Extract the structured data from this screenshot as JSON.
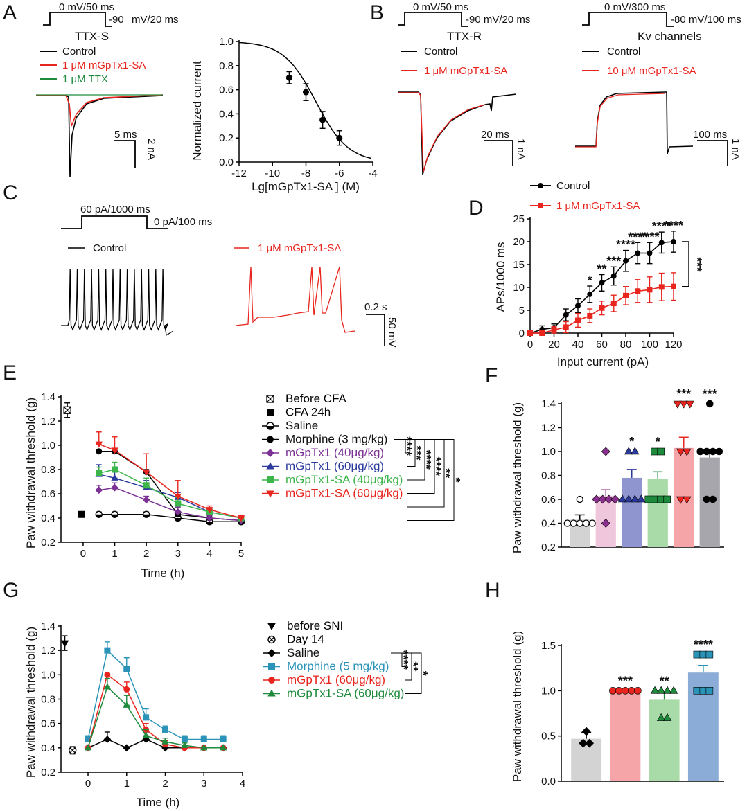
{
  "panels": {
    "A": {
      "label": "A",
      "protocol": {
        "step": "0 mV/50 ms",
        "tail": "-90",
        "tail_unit": "mV/20 ms"
      },
      "subtitle": "TTX-S",
      "legend": [
        "Control",
        "1 μM mGpTx1-SA",
        "1 μM TTX"
      ],
      "scale_x": "5 ms",
      "scale_y": "2 nA"
    },
    "A_dose": {
      "ylabel": "Normalized current",
      "xlabel": "Lg[mGpTx1-SA ] (M)"
    },
    "B": {
      "label": "B",
      "ttxr": {
        "protocol_step": "0 mV/50 ms",
        "protocol_tail": "-90 mV/20 ms",
        "subtitle": "TTX-R",
        "legend": [
          "Control",
          "1 μM mGpTx1-SA"
        ],
        "scale_x": "20 ms",
        "scale_y": "1 nA"
      },
      "kv": {
        "protocol_step": "0 mV/300 ms",
        "protocol_tail": "-80 mV/100 ms",
        "subtitle": "Kv channels",
        "legend": [
          "Control",
          "10 μM mGpTx1-SA"
        ],
        "scale_x": "100 ms",
        "scale_y": "1 nA"
      }
    },
    "C": {
      "label": "C",
      "protocol_step": "60 pA/1000 ms",
      "protocol_tail": "0 pA/100 ms",
      "legend": [
        "Control",
        "1 μM mGpTx1-SA"
      ],
      "scale_x": "0.2 s",
      "scale_y": "50 mV"
    },
    "D": {
      "label": "D",
      "legend": [
        "Control",
        "1 μM mGpTx1-SA"
      ],
      "ylabel": "APs/1000 ms",
      "xlabel": "Input current (pA)"
    },
    "E": {
      "label": "E",
      "ylabel": "Paw withdrawal threshold (g)",
      "xlabel": "Time (h)",
      "legend": [
        "Before CFA",
        "CFA 24h",
        "Saline",
        "Morphine (3 mg/kg)",
        "mGpTx1 (40μg/kg)",
        "mGpTx1 (60μg/kg)",
        "mGpTx1-SA (40μg/kg)",
        "mGpTx1-SA (60μg/kg)"
      ]
    },
    "F": {
      "label": "F",
      "ylabel": "Paw withdrawal threshold (g)"
    },
    "G": {
      "label": "G",
      "ylabel": "Paw withdrawal threshold (g)",
      "xlabel": "Time (h)",
      "legend": [
        "before SNI",
        "Day 14",
        "Saline",
        "Morphine (5 mg/kg)",
        "mGpTx1 (60μg/kg)",
        "mGpTx1-SA (60μg/kg)"
      ]
    },
    "H": {
      "label": "H",
      "ylabel": "Paw withdrawal threshold (g)"
    }
  },
  "colors": {
    "black": "#000000",
    "red": "#e8251e",
    "green": "#1d8a3c",
    "purple": "#7b3294",
    "blue": "#2b3a9c",
    "lightgreen": "#3cb54a",
    "teal": "#2b93b8"
  },
  "chart_data": [
    {
      "id": "A_dose",
      "type": "scatter",
      "x": [
        -9,
        -8,
        -7,
        -6
      ],
      "y": [
        0.7,
        0.58,
        0.35,
        0.2
      ],
      "err": [
        0.05,
        0.07,
        0.07,
        0.06
      ],
      "fit_curve": true,
      "xlim": [
        -12,
        -4
      ],
      "ylim": [
        0,
        1.0
      ],
      "xticks": [
        -12,
        -10,
        -8,
        -6,
        -4
      ],
      "yticks": [
        0,
        0.2,
        0.4,
        0.6,
        0.8,
        1.0
      ],
      "xlabel": "Lg[mGpTx1-SA ] (M)",
      "ylabel": "Normalized current"
    },
    {
      "id": "D",
      "type": "line",
      "x": [
        0,
        10,
        20,
        30,
        40,
        50,
        60,
        70,
        80,
        90,
        100,
        110,
        120
      ],
      "series": [
        {
          "name": "Control",
          "color": "#000000",
          "marker": "circle",
          "values": [
            0,
            0.8,
            1.2,
            4.0,
            6.0,
            8.5,
            11.0,
            12.5,
            15.8,
            17.5,
            17.5,
            19.8,
            20.0
          ],
          "err": [
            0,
            0.8,
            0.8,
            1.3,
            1.5,
            1.8,
            1.8,
            2.0,
            2.3,
            2.3,
            2.3,
            2.3,
            2.3
          ]
        },
        {
          "name": "1 μM mGpTx1-SA",
          "color": "#e8251e",
          "marker": "square",
          "values": [
            0,
            0,
            0.7,
            1.3,
            2.8,
            3.8,
            5.5,
            6.5,
            8.2,
            9.2,
            9.5,
            10.1,
            10.2
          ],
          "err": [
            0,
            0.3,
            0.7,
            1.2,
            1.5,
            1.5,
            1.5,
            1.8,
            2.0,
            2.5,
            2.8,
            3.0,
            3.0
          ]
        }
      ],
      "significance": [
        "",
        "",
        "",
        "",
        "",
        "*",
        "**",
        "***",
        "****",
        "****",
        "****",
        "****",
        "****"
      ],
      "bracket_label": "***",
      "xlim": [
        0,
        120
      ],
      "ylim": [
        0,
        25
      ],
      "xticks": [
        0,
        20,
        40,
        60,
        80,
        100,
        120
      ],
      "yticks": [
        0,
        5,
        10,
        15,
        20,
        25
      ],
      "xlabel": "Input current (pA)",
      "ylabel": "APs/1000 ms"
    },
    {
      "id": "E",
      "type": "line",
      "x": [
        0.5,
        1,
        2,
        3,
        4,
        5
      ],
      "baseline_points": [
        {
          "name": "Before CFA",
          "x": -0.5,
          "y": 1.29,
          "err": 0.06,
          "marker": "xsquare"
        },
        {
          "name": "CFA 24h",
          "x": -0.05,
          "y": 0.43,
          "err": 0,
          "marker": "square"
        }
      ],
      "series": [
        {
          "name": "Saline",
          "color": "#000000",
          "marker": "halfcircle",
          "values": [
            0.43,
            0.43,
            0.43,
            0.4,
            0.37,
            0.37
          ],
          "err": [
            0.02,
            0.02,
            0.02,
            0.01,
            0.01,
            0.01
          ]
        },
        {
          "name": "Morphine (3 mg/kg)",
          "color": "#000000",
          "marker": "circle",
          "values": [
            0.95,
            0.95,
            0.78,
            0.43,
            0.4,
            0.38
          ],
          "err": [
            0.01,
            0.01,
            0.02,
            0.02,
            0.02,
            0.02
          ]
        },
        {
          "name": "mGpTx1 (40μg/kg)",
          "color": "#7b3294",
          "marker": "diamond",
          "values": [
            0.63,
            0.65,
            0.55,
            0.45,
            0.4,
            0.38
          ],
          "err": [
            0.04,
            0.04,
            0.03,
            0.04,
            0.02,
            0.02
          ]
        },
        {
          "name": "mGpTx1 (60μg/kg)",
          "color": "#2b3a9c",
          "marker": "triangle",
          "values": [
            0.76,
            0.73,
            0.65,
            0.57,
            0.45,
            0.4
          ],
          "err": [
            0.08,
            0.06,
            0.06,
            0.04,
            0.03,
            0.02
          ]
        },
        {
          "name": "mGpTx1-SA (40μg/kg)",
          "color": "#3cb54a",
          "marker": "square",
          "values": [
            0.77,
            0.8,
            0.67,
            0.52,
            0.45,
            0.4
          ],
          "err": [
            0.05,
            0.06,
            0.06,
            0.05,
            0.03,
            0.02
          ]
        },
        {
          "name": "mGpTx1-SA (60μg/kg)",
          "color": "#e8251e",
          "marker": "triangledown",
          "values": [
            1.01,
            0.96,
            0.78,
            0.58,
            0.47,
            0.4
          ],
          "err": [
            0.1,
            0.11,
            0.15,
            0.13,
            0.03,
            0.02
          ]
        }
      ],
      "brackets": [
        "****",
        "***",
        "****",
        "****",
        "**",
        "*"
      ],
      "xlim": [
        -0.7,
        5
      ],
      "ylim": [
        0.2,
        1.4
      ],
      "xticks": [
        0,
        1,
        2,
        3,
        4,
        5
      ],
      "yticks": [
        0.2,
        0.4,
        0.6,
        0.8,
        1.0,
        1.2,
        1.4
      ],
      "xlabel": "Time (h)",
      "ylabel": "Paw withdrawal threshold (g)"
    },
    {
      "id": "F",
      "type": "bar",
      "categories": [
        "Saline",
        "mGpTx1 (40μg/kg)",
        "mGpTx1 (60μg/kg)",
        "mGpTx1-SA (40μg/kg)",
        "mGpTx1-SA (60μg/kg)",
        "Morphine (3 mg/kg)"
      ],
      "values": [
        0.43,
        0.63,
        0.78,
        0.77,
        1.03,
        0.95
      ],
      "err": [
        0.04,
        0.05,
        0.07,
        0.06,
        0.09,
        0.04
      ],
      "colors": [
        "#d3d3d3",
        "#f0c6dd",
        "#8f96cf",
        "#a8dba7",
        "#f5a5a8",
        "#a7a6ad"
      ],
      "marker_colors": [
        "#ffffff",
        "#8b2f8e",
        "#2b3a9c",
        "#1d8a3c",
        "#e8251e",
        "#000000"
      ],
      "markers": [
        "circle",
        "diamond",
        "triangle",
        "square",
        "triangledown",
        "circle"
      ],
      "points": [
        [
          0.6,
          0.4,
          0.4,
          0.4,
          0.4,
          0.4
        ],
        [
          1.0,
          0.6,
          0.6,
          0.6,
          0.6,
          0.4
        ],
        [
          1.0,
          1.0,
          0.6,
          0.6,
          0.6,
          0.6
        ],
        [
          1.0,
          1.0,
          0.6,
          0.6,
          0.6,
          0.6
        ],
        [
          1.4,
          1.4,
          1.4,
          1.0,
          1.0,
          0.6,
          0.6
        ],
        [
          1.4,
          1.0,
          1.0,
          1.0,
          1.0,
          0.6,
          0.6
        ]
      ],
      "significance": [
        "",
        "",
        "*",
        "*",
        "***",
        "***"
      ],
      "ylim": [
        0.2,
        1.4
      ],
      "yticks": [
        0.2,
        0.4,
        0.6,
        0.8,
        1.0,
        1.2,
        1.4
      ],
      "ylabel": "Paw withdrawal threshold (g)"
    },
    {
      "id": "G",
      "type": "line",
      "x": [
        0,
        0.5,
        1,
        1.5,
        2,
        2.5,
        3,
        3.5
      ],
      "baseline_points": [
        {
          "name": "before SNI",
          "x": -0.6,
          "y": 1.26,
          "err": 0.06,
          "marker": "triangledown"
        },
        {
          "name": "Day 14",
          "x": -0.4,
          "y": 0.38,
          "err": 0.03,
          "marker": "crosscircle"
        }
      ],
      "series": [
        {
          "name": "Saline",
          "color": "#000000",
          "marker": "diamond",
          "values": [
            0.4,
            0.47,
            0.4,
            0.47,
            0.4,
            0.4,
            0.4,
            0.4
          ],
          "err": [
            0.01,
            0.06,
            0.01,
            0.06,
            0.01,
            0.01,
            0.01,
            0.01
          ]
        },
        {
          "name": "Morphine (5 mg/kg)",
          "color": "#2b93b8",
          "marker": "square",
          "values": [
            0.47,
            1.2,
            1.05,
            0.65,
            0.55,
            0.47,
            0.47,
            0.47
          ],
          "err": [
            0.03,
            0.07,
            0.09,
            0.07,
            0.03,
            0.03,
            0.03,
            0.03
          ]
        },
        {
          "name": "mGpTx1 (60μg/kg)",
          "color": "#e8251e",
          "marker": "circle",
          "values": [
            0.4,
            1.0,
            0.88,
            0.55,
            0.43,
            0.4,
            0.4,
            0.4
          ],
          "err": [
            0.01,
            0.01,
            0.06,
            0.05,
            0.03,
            0.01,
            0.01,
            0.01
          ]
        },
        {
          "name": "mGpTx1-SA (60μg/kg)",
          "color": "#1d8a3c",
          "marker": "triangle",
          "values": [
            0.4,
            0.9,
            0.75,
            0.5,
            0.45,
            0.42,
            0.4,
            0.4
          ],
          "err": [
            0.01,
            0.07,
            0.08,
            0.05,
            0.03,
            0.02,
            0.01,
            0.01
          ]
        }
      ],
      "brackets": [
        "****",
        "**",
        "*"
      ],
      "xlim": [
        -0.7,
        4
      ],
      "ylim": [
        0.2,
        1.4
      ],
      "xticks": [
        0,
        1,
        2,
        3,
        4
      ],
      "yticks": [
        0.2,
        0.4,
        0.6,
        0.8,
        1.0,
        1.2,
        1.4
      ],
      "xlabel": "Time (h)",
      "ylabel": "Paw withdrawal threshold (g)"
    },
    {
      "id": "H",
      "type": "bar",
      "categories": [
        "Saline",
        "mGpTx1 (60μg/kg)",
        "mGpTx1-SA (60μg/kg)",
        "Morphine (5 mg/kg)"
      ],
      "values": [
        0.47,
        1.0,
        0.9,
        1.2
      ],
      "err": [
        0.07,
        0.0,
        0.08,
        0.08
      ],
      "colors": [
        "#d3d3d3",
        "#f5a5a8",
        "#a8dba7",
        "#8aacd6"
      ],
      "marker_colors": [
        "#000000",
        "#e8251e",
        "#1d8a3c",
        "#2b93b8"
      ],
      "markers": [
        "diamond",
        "circle",
        "triangle",
        "square"
      ],
      "points": [
        [
          0.55,
          0.42,
          0.42
        ],
        [
          1.0,
          1.0,
          1.0,
          1.0,
          1.0
        ],
        [
          1.0,
          1.0,
          1.0,
          1.0,
          0.7,
          0.7
        ],
        [
          1.4,
          1.4,
          1.4,
          1.0,
          1.0,
          1.0
        ]
      ],
      "significance": [
        "",
        "***",
        "**",
        "****"
      ],
      "ylim": [
        0,
        1.5
      ],
      "yticks": [
        0.0,
        0.5,
        1.0,
        1.5
      ],
      "ylabel": "Paw withdrawal threshold (g)"
    }
  ]
}
